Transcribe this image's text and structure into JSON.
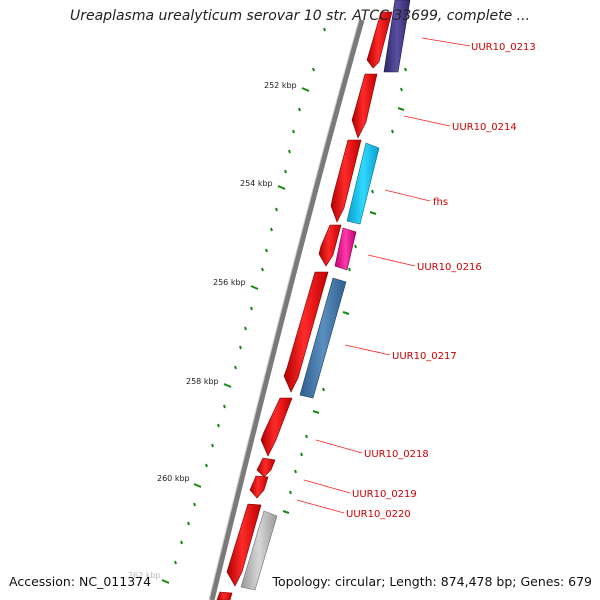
{
  "title": "Ureaplasma urealyticum serovar 10 str. ATCC 33699, complete ...",
  "footer": {
    "accession": "Accession: NC_011374",
    "summary": "Topology: circular; Length: 874,478 bp; Genes: 679"
  },
  "scale_labels": [
    "252 kbp",
    "254 kbp",
    "256 kbp",
    "258 kbp",
    "260 kbp",
    "262 kbp"
  ],
  "genes": [
    {
      "name": "UUR10_0213",
      "color": "#4a3f8c"
    },
    {
      "name": "UUR10_0214",
      "color": "#ee0000"
    },
    {
      "name": "fhs",
      "color": "#1ec8f0"
    },
    {
      "name": "UUR10_0216",
      "color": "#ee1899"
    },
    {
      "name": "UUR10_0217",
      "color": "#4a7fb0"
    },
    {
      "name": "UUR10_0218",
      "color": "#ee0000"
    },
    {
      "name": "UUR10_0219",
      "color": "#ee0000"
    },
    {
      "name": "UUR10_0220",
      "color": "#b8b8b8"
    }
  ],
  "colors": {
    "backbone": "#7a7a7a",
    "cds": "#ee0000",
    "ticks": "#138a13",
    "label": "#cc0000"
  }
}
